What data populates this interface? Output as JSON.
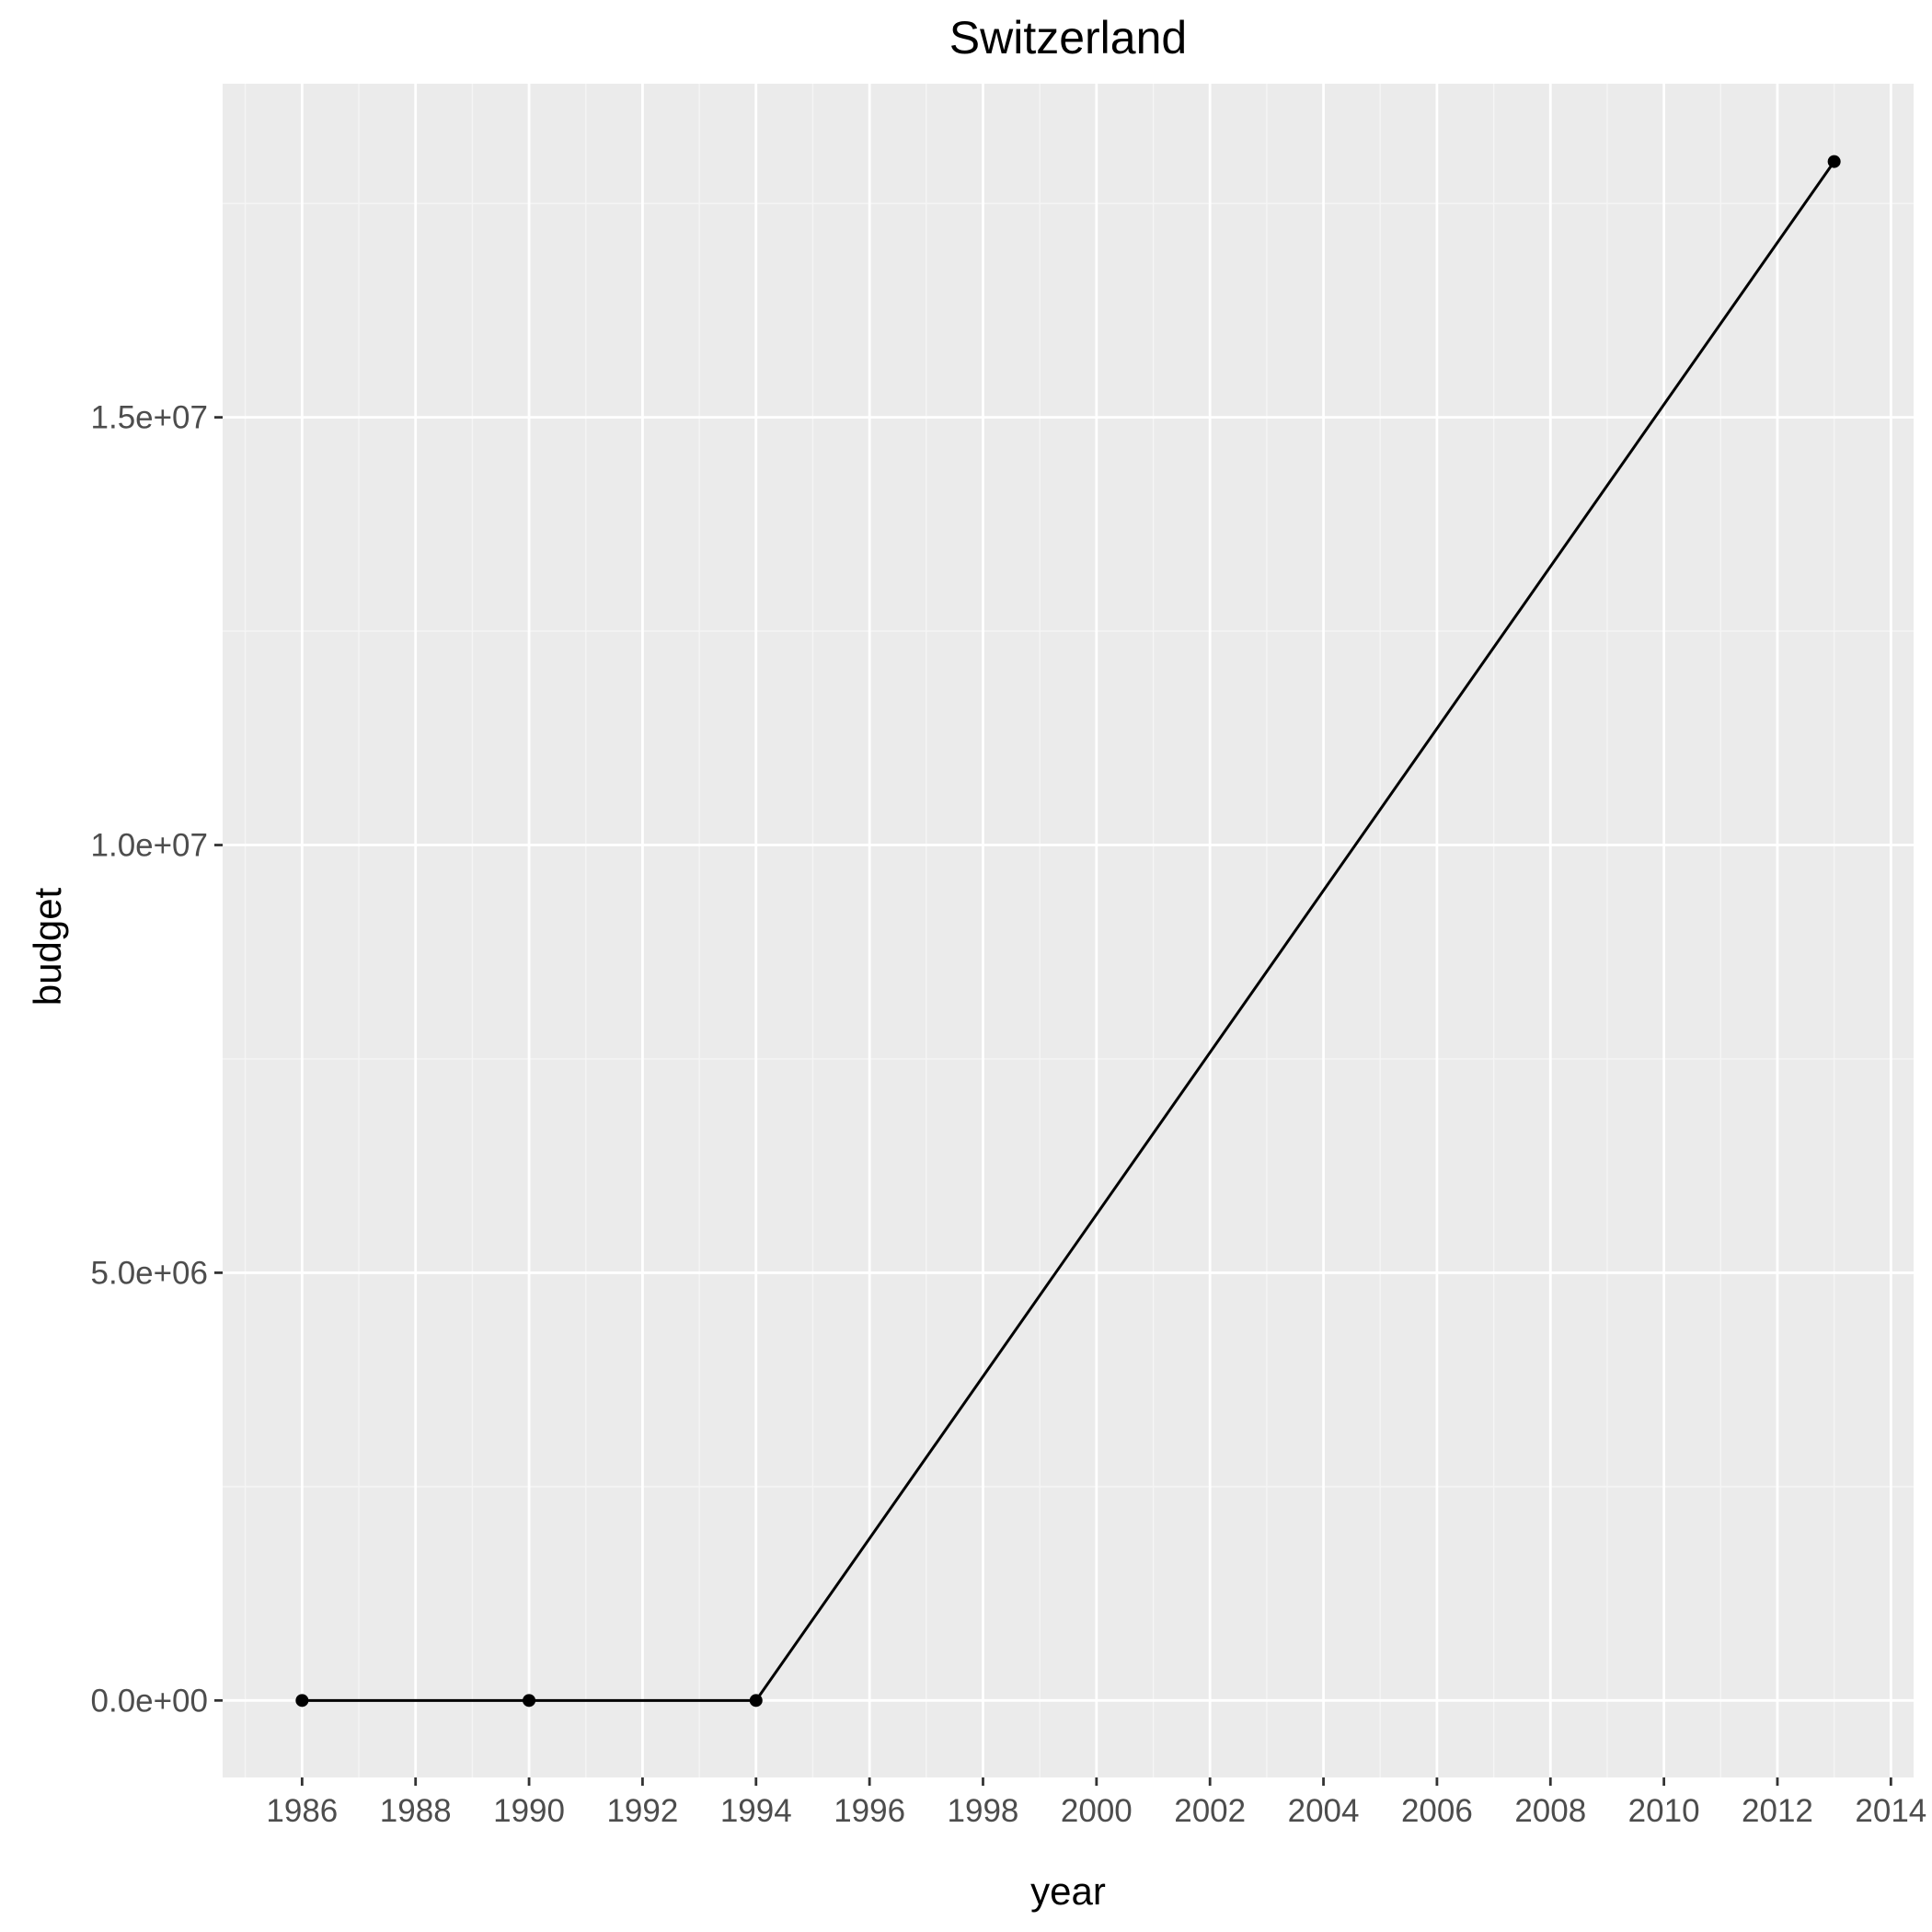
{
  "chart_data": {
    "type": "line",
    "title": "Switzerland",
    "xlabel": "year",
    "ylabel": "budget",
    "x": [
      1986,
      1990,
      1994,
      2013
    ],
    "series": [
      {
        "values": [
          0,
          0,
          0,
          17990000
        ]
      }
    ],
    "xlim": [
      1984.6,
      2014.4
    ],
    "ylim": [
      -900000,
      18900000
    ],
    "x_ticks": [
      1986,
      1988,
      1990,
      1992,
      1994,
      1996,
      1998,
      2000,
      2002,
      2004,
      2006,
      2008,
      2010,
      2012,
      2014
    ],
    "x_tick_labels": [
      "1986",
      "1988",
      "1990",
      "1992",
      "1994",
      "1996",
      "1998",
      "2000",
      "2002",
      "2004",
      "2006",
      "2008",
      "2010",
      "2012",
      "2014"
    ],
    "x_minor_ticks": [
      1985,
      1987,
      1989,
      1991,
      1993,
      1995,
      1997,
      1999,
      2001,
      2003,
      2005,
      2007,
      2009,
      2011,
      2013
    ],
    "y_ticks": [
      0,
      5000000,
      10000000,
      15000000
    ],
    "y_tick_labels": [
      "0.0e+00",
      "5.0e+06",
      "1.0e+07",
      "1.5e+07"
    ],
    "y_minor_ticks": [
      2500000,
      7500000,
      12500000,
      17500000
    ],
    "grid": true,
    "legend": "none",
    "colors": {
      "panel_background": "#ebebeb",
      "grid_major": "#ffffff",
      "grid_minor": "#f5f5f5",
      "line": "#000000",
      "tick_label": "#4d4d4d",
      "axis_title": "#000000"
    }
  }
}
